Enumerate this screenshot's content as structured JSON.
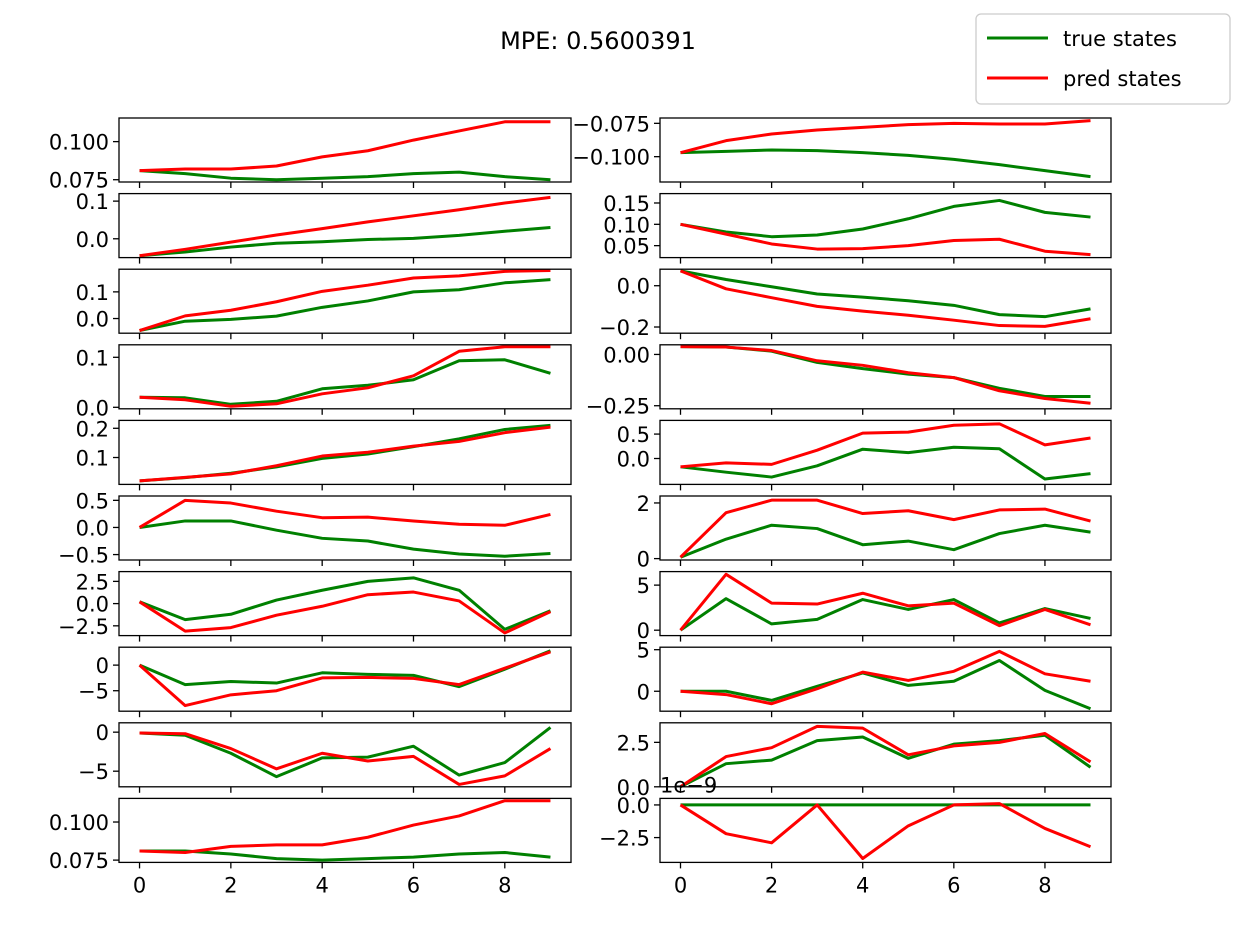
{
  "figure": {
    "suptitle": "MPE: 0.5600391"
  },
  "legend": {
    "entries": [
      {
        "label": "true states",
        "color": "#008000"
      },
      {
        "label": "pred states",
        "color": "#ff0000"
      }
    ],
    "placement": "top-right"
  },
  "colors": {
    "true": "#008000",
    "pred": "#ff0000"
  },
  "chart_data": {
    "type": "line",
    "grid": false,
    "layout": "10 rows x 2 columns, shared x-axis",
    "x": [
      0,
      1,
      2,
      3,
      4,
      5,
      6,
      7,
      8,
      9
    ],
    "x_ticks": [
      0,
      2,
      4,
      6,
      8
    ],
    "subplots": [
      {
        "ylim": [
          0.0735,
          0.1155
        ],
        "yticks": [
          0.075,
          0.1
        ],
        "yticklabels": [
          "0.075",
          "0.100"
        ],
        "series": [
          {
            "name": "true states",
            "values": [
              0.081,
              0.079,
              0.076,
              0.075,
              0.076,
              0.077,
              0.079,
              0.08,
              0.077,
              0.075
            ]
          },
          {
            "name": "pred states",
            "values": [
              0.081,
              0.082,
              0.082,
              0.084,
              0.09,
              0.094,
              0.101,
              0.107,
              0.113,
              0.113
            ]
          }
        ]
      },
      {
        "ylim": [
          -0.119,
          -0.071
        ],
        "yticks": [
          -0.1,
          -0.075
        ],
        "yticklabels": [
          "−0.100",
          "−0.075"
        ],
        "series": [
          {
            "name": "true states",
            "values": [
              -0.097,
              -0.096,
              -0.095,
              -0.0955,
              -0.097,
              -0.099,
              -0.102,
              -0.106,
              -0.1105,
              -0.115
            ]
          },
          {
            "name": "pred states",
            "values": [
              -0.097,
              -0.088,
              -0.083,
              -0.08,
              -0.078,
              -0.076,
              -0.075,
              -0.0755,
              -0.0755,
              -0.073
            ]
          }
        ]
      },
      {
        "ylim": [
          -0.05,
          0.12
        ],
        "yticks": [
          0.0,
          0.1
        ],
        "yticklabels": [
          "0.0",
          "0.1"
        ],
        "series": [
          {
            "name": "true states",
            "values": [
              -0.045,
              -0.035,
              -0.022,
              -0.012,
              -0.008,
              -0.002,
              0.001,
              0.009,
              0.02,
              0.03
            ]
          },
          {
            "name": "pred states",
            "values": [
              -0.045,
              -0.028,
              -0.009,
              0.01,
              0.027,
              0.045,
              0.061,
              0.077,
              0.095,
              0.11
            ]
          }
        ]
      },
      {
        "ylim": [
          0.022,
          0.172
        ],
        "yticks": [
          0.05,
          0.1,
          0.15
        ],
        "yticklabels": [
          "0.05",
          "0.10",
          "0.15"
        ],
        "series": [
          {
            "name": "true states",
            "values": [
              0.1,
              0.082,
              0.071,
              0.075,
              0.089,
              0.113,
              0.142,
              0.156,
              0.128,
              0.117
            ]
          },
          {
            "name": "pred states",
            "values": [
              0.1,
              0.077,
              0.054,
              0.042,
              0.043,
              0.05,
              0.062,
              0.065,
              0.037,
              0.029
            ]
          }
        ]
      },
      {
        "ylim": [
          -0.055,
          0.185
        ],
        "yticks": [
          0.0,
          0.1
        ],
        "yticklabels": [
          "0.0",
          "0.1"
        ],
        "series": [
          {
            "name": "true states",
            "values": [
              -0.045,
              -0.01,
              -0.003,
              0.009,
              0.042,
              0.066,
              0.1,
              0.108,
              0.134,
              0.146
            ]
          },
          {
            "name": "pred states",
            "values": [
              -0.045,
              0.01,
              0.031,
              0.063,
              0.102,
              0.125,
              0.152,
              0.16,
              0.177,
              0.18
            ]
          }
        ]
      },
      {
        "ylim": [
          -0.23,
          0.08
        ],
        "yticks": [
          -0.2,
          0.0
        ],
        "yticklabels": [
          "−0.2",
          "0.0"
        ],
        "series": [
          {
            "name": "true states",
            "values": [
              0.072,
              0.03,
              -0.005,
              -0.04,
              -0.055,
              -0.073,
              -0.095,
              -0.14,
              -0.15,
              -0.112
            ]
          },
          {
            "name": "pred states",
            "values": [
              0.072,
              -0.015,
              -0.058,
              -0.1,
              -0.123,
              -0.143,
              -0.167,
              -0.193,
              -0.197,
              -0.16
            ]
          }
        ]
      },
      {
        "ylim": [
          -0.003,
          0.125
        ],
        "yticks": [
          0.0,
          0.1
        ],
        "yticklabels": [
          "0.0",
          "0.1"
        ],
        "series": [
          {
            "name": "true states",
            "values": [
              0.02,
              0.019,
              0.006,
              0.012,
              0.037,
              0.044,
              0.055,
              0.093,
              0.095,
              0.068
            ]
          },
          {
            "name": "pred states",
            "values": [
              0.02,
              0.015,
              0.002,
              0.007,
              0.027,
              0.039,
              0.063,
              0.112,
              0.121,
              0.121
            ]
          }
        ]
      },
      {
        "ylim": [
          -0.265,
          0.047
        ],
        "yticks": [
          -0.25,
          0.0
        ],
        "yticklabels": [
          "−0.25",
          "0.00"
        ],
        "series": [
          {
            "name": "true states",
            "values": [
              0.038,
              0.036,
              0.016,
              -0.039,
              -0.069,
              -0.096,
              -0.113,
              -0.165,
              -0.205,
              -0.205
            ]
          },
          {
            "name": "pred states",
            "values": [
              0.038,
              0.036,
              0.019,
              -0.031,
              -0.053,
              -0.089,
              -0.113,
              -0.177,
              -0.215,
              -0.238
            ]
          }
        ]
      },
      {
        "ylim": [
          0.008,
          0.227
        ],
        "yticks": [
          0.1,
          0.2
        ],
        "yticklabels": [
          "0.1",
          "0.2"
        ],
        "series": [
          {
            "name": "true states",
            "values": [
              0.02,
              0.031,
              0.046,
              0.068,
              0.097,
              0.112,
              0.137,
              0.164,
              0.196,
              0.21
            ]
          },
          {
            "name": "pred states",
            "values": [
              0.02,
              0.032,
              0.044,
              0.072,
              0.105,
              0.118,
              0.139,
              0.155,
              0.185,
              0.204
            ]
          }
        ]
      },
      {
        "ylim": [
          -0.53,
          0.78
        ],
        "yticks": [
          0.0,
          0.5
        ],
        "yticklabels": [
          "0.0",
          "0.5"
        ],
        "series": [
          {
            "name": "true states",
            "values": [
              -0.17,
              -0.28,
              -0.38,
              -0.15,
              0.19,
              0.12,
              0.23,
              0.2,
              -0.42,
              -0.31
            ]
          },
          {
            "name": "pred states",
            "values": [
              -0.17,
              -0.09,
              -0.12,
              0.17,
              0.52,
              0.54,
              0.68,
              0.71,
              0.28,
              0.42
            ]
          }
        ]
      },
      {
        "ylim": [
          -0.6,
          0.58
        ],
        "yticks": [
          -0.5,
          0.0,
          0.5
        ],
        "yticklabels": [
          "−0.5",
          "0.0",
          "0.5"
        ],
        "series": [
          {
            "name": "true states",
            "values": [
              0.0,
              0.12,
              0.12,
              -0.05,
              -0.2,
              -0.25,
              -0.4,
              -0.49,
              -0.53,
              -0.48
            ]
          },
          {
            "name": "pred states",
            "values": [
              0.0,
              0.5,
              0.45,
              0.3,
              0.18,
              0.19,
              0.12,
              0.06,
              0.04,
              0.24
            ]
          }
        ]
      },
      {
        "ylim": [
          -0.05,
          2.25
        ],
        "yticks": [
          0,
          2
        ],
        "yticklabels": [
          "0",
          "2"
        ],
        "series": [
          {
            "name": "true states",
            "values": [
              0.05,
              0.7,
              1.2,
              1.08,
              0.5,
              0.63,
              0.32,
              0.9,
              1.2,
              0.95
            ]
          },
          {
            "name": "pred states",
            "values": [
              0.05,
              1.65,
              2.1,
              2.1,
              1.62,
              1.72,
              1.4,
              1.75,
              1.78,
              1.35
            ]
          }
        ]
      },
      {
        "ylim": [
          -3.6,
          3.6
        ],
        "yticks": [
          -2.5,
          0.0,
          2.5
        ],
        "yticklabels": [
          "−2.5",
          "0.0",
          "2.5"
        ],
        "series": [
          {
            "name": "true states",
            "values": [
              0.2,
              -1.8,
              -1.2,
              0.4,
              1.5,
              2.5,
              2.9,
              1.5,
              -2.9,
              -0.8
            ]
          },
          {
            "name": "pred states",
            "values": [
              0.2,
              -3.1,
              -2.7,
              -1.3,
              -0.3,
              1.0,
              1.3,
              0.3,
              -3.3,
              -0.9
            ]
          }
        ]
      },
      {
        "ylim": [
          -0.6,
          6.5
        ],
        "yticks": [
          0,
          5
        ],
        "yticklabels": [
          "0",
          "5"
        ],
        "series": [
          {
            "name": "true states",
            "values": [
              0.0,
              3.5,
              0.7,
              1.2,
              3.4,
              2.3,
              3.4,
              0.8,
              2.4,
              1.3
            ]
          },
          {
            "name": "pred states",
            "values": [
              0.0,
              6.2,
              3.0,
              2.9,
              4.1,
              2.7,
              3.0,
              0.5,
              2.3,
              0.6
            ]
          }
        ]
      },
      {
        "ylim": [
          -9.0,
          3.5
        ],
        "yticks": [
          -5,
          0
        ],
        "yticklabels": [
          "−5",
          "0"
        ],
        "series": [
          {
            "name": "true states",
            "values": [
              0.0,
              -3.8,
              -3.2,
              -3.5,
              -1.5,
              -1.8,
              -2.0,
              -4.2,
              -0.8,
              2.8
            ]
          },
          {
            "name": "pred states",
            "values": [
              0.0,
              -7.9,
              -5.8,
              -5.0,
              -2.5,
              -2.4,
              -2.6,
              -3.8,
              -0.6,
              2.6
            ]
          }
        ]
      },
      {
        "ylim": [
          -2.4,
          5.3
        ],
        "yticks": [
          0,
          5
        ],
        "yticklabels": [
          "0",
          "5"
        ],
        "series": [
          {
            "name": "true states",
            "values": [
              0.0,
              0.0,
              -1.1,
              0.6,
              2.2,
              0.7,
              1.2,
              3.7,
              0.1,
              -2.1
            ]
          },
          {
            "name": "pred states",
            "values": [
              0.0,
              -0.4,
              -1.5,
              0.3,
              2.3,
              1.3,
              2.4,
              4.8,
              2.1,
              1.2
            ]
          }
        ]
      },
      {
        "ylim": [
          -7.0,
          1.2
        ],
        "yticks": [
          -5,
          0
        ],
        "yticklabels": [
          "−5",
          "0"
        ],
        "series": [
          {
            "name": "true states",
            "values": [
              -0.1,
              -0.4,
              -2.7,
              -5.7,
              -3.3,
              -3.2,
              -1.8,
              -5.5,
              -3.9,
              0.6
            ]
          },
          {
            "name": "pred states",
            "values": [
              -0.1,
              -0.2,
              -2.1,
              -4.7,
              -2.7,
              -3.7,
              -3.1,
              -6.7,
              -5.6,
              -2.1
            ]
          }
        ]
      },
      {
        "ylim": [
          0.0,
          3.6
        ],
        "yticks": [
          0.0,
          2.5
        ],
        "yticklabels": [
          "0.0",
          "2.5"
        ],
        "series": [
          {
            "name": "true states",
            "values": [
              0.0,
              1.3,
              1.5,
              2.6,
              2.8,
              1.6,
              2.4,
              2.6,
              2.9,
              1.1
            ]
          },
          {
            "name": "pred states",
            "values": [
              0.0,
              1.7,
              2.2,
              3.4,
              3.3,
              1.8,
              2.3,
              2.5,
              3.0,
              1.4
            ]
          }
        ]
      },
      {
        "ylim": [
          0.0735,
          0.1155
        ],
        "yticks": [
          0.075,
          0.1
        ],
        "yticklabels": [
          "0.075",
          "0.100"
        ],
        "series": [
          {
            "name": "true states",
            "values": [
              0.081,
              0.081,
              0.079,
              0.076,
              0.075,
              0.076,
              0.077,
              0.079,
              0.08,
              0.077
            ]
          },
          {
            "name": "pred states",
            "values": [
              0.081,
              0.08,
              0.084,
              0.085,
              0.085,
              0.09,
              0.098,
              0.104,
              0.114,
              0.114
            ]
          }
        ]
      },
      {
        "ylim": [
          -4.4,
          0.5
        ],
        "yticks": [
          -2.5,
          0.0
        ],
        "yticklabels": [
          "−2.5",
          "0.0"
        ],
        "offset_label": "1e−9",
        "series": [
          {
            "name": "true states",
            "values": [
              0,
              0,
              0,
              0,
              0,
              0,
              0,
              0,
              0,
              0
            ]
          },
          {
            "name": "pred states",
            "values": [
              0.0,
              -2.2,
              -2.9,
              0.0,
              -4.1,
              -1.6,
              0.0,
              0.1,
              -1.8,
              -3.2
            ]
          }
        ]
      }
    ]
  }
}
